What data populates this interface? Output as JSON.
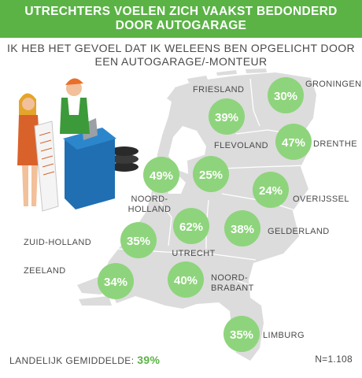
{
  "header": {
    "title_line1": "UTRECHTERS VOELEN ZICH VAAKST BEDONDERD",
    "title_line2": "DOOR AUTOGARAGE"
  },
  "subtitle": {
    "line1": "IK HEB HET GEVOEL DAT IK WELEENS BEN OPGELICHT DOOR",
    "line2": "EEN AUTOGARAGE/-MONTEUR"
  },
  "footer": {
    "national_label": "LANDELIJK GEMIDDELDE:",
    "national_value": "39%",
    "sample": "N=1.108"
  },
  "colors": {
    "header_bg": "#5bb346",
    "bubble": "#8ed47c",
    "map": "#dcdcdc",
    "text": "#4a4a4a"
  },
  "chart_data": {
    "type": "map",
    "unit": "%",
    "regions": [
      {
        "name": "GRONINGEN",
        "value": 30
      },
      {
        "name": "FRIESLAND",
        "value": 39
      },
      {
        "name": "DRENTHE",
        "value": 47
      },
      {
        "name": "FLEVOLAND",
        "value": 25
      },
      {
        "name": "NOORD-HOLLAND",
        "value": 49
      },
      {
        "name": "OVERIJSSEL",
        "value": 24
      },
      {
        "name": "UTRECHT",
        "value": 62
      },
      {
        "name": "GELDERLAND",
        "value": 38
      },
      {
        "name": "ZUID-HOLLAND",
        "value": 35
      },
      {
        "name": "ZEELAND",
        "value": 34
      },
      {
        "name": "NOORD-BRABANT",
        "value": 40
      },
      {
        "name": "LIMBURG",
        "value": 35
      }
    ]
  }
}
